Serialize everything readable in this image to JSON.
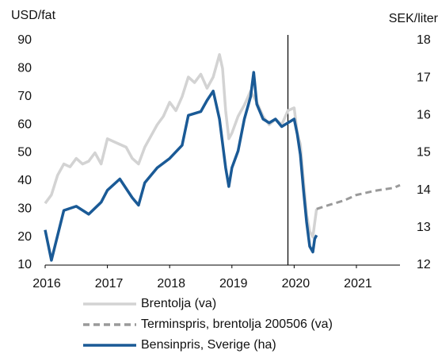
{
  "chart_data": {
    "type": "line",
    "y_label": "USD/fat",
    "y2_label": "SEK/liter",
    "xlim": [
      2016,
      2021.7
    ],
    "xticks": [
      2016,
      2017,
      2018,
      2019,
      2020,
      2021
    ],
    "ylim": [
      10,
      90
    ],
    "yticks": [
      10,
      20,
      30,
      40,
      50,
      60,
      70,
      80,
      90
    ],
    "y2lim": [
      12,
      18
    ],
    "y2ticks": [
      12,
      13,
      14,
      15,
      16,
      17,
      18
    ],
    "vline_x": 2019.9,
    "grid": false,
    "series": [
      {
        "name": "Brentolja (va)",
        "color": "#d3d3d3",
        "dashed": false,
        "axis": "y",
        "x": [
          2016.0,
          2016.1,
          2016.2,
          2016.3,
          2016.4,
          2016.5,
          2016.6,
          2016.7,
          2016.8,
          2016.9,
          2017.0,
          2017.2,
          2017.3,
          2017.4,
          2017.5,
          2017.6,
          2017.7,
          2017.8,
          2017.9,
          2018.0,
          2018.1,
          2018.2,
          2018.3,
          2018.4,
          2018.5,
          2018.6,
          2018.7,
          2018.8,
          2018.85,
          2018.9,
          2018.95,
          2019.0,
          2019.1,
          2019.2,
          2019.3,
          2019.4,
          2019.5,
          2019.6,
          2019.7,
          2019.8,
          2019.9,
          2020.0,
          2020.05,
          2020.1,
          2020.15,
          2020.2,
          2020.25,
          2020.3,
          2020.33,
          2020.36
        ],
        "values": [
          32,
          35,
          42,
          46,
          45,
          48,
          46,
          47,
          50,
          46,
          55,
          53,
          52,
          48,
          46,
          52,
          56,
          60,
          63,
          68,
          65,
          70,
          77,
          75,
          78,
          73,
          77,
          85,
          80,
          65,
          55,
          57,
          63,
          67,
          72,
          68,
          63,
          60,
          62,
          60,
          65,
          66,
          57,
          53,
          40,
          28,
          22,
          20,
          25,
          30
        ]
      },
      {
        "name": "Terminspris, brentolja 200506 (va)",
        "color": "#9a9a9a",
        "dashed": true,
        "axis": "y",
        "x": [
          2020.36,
          2020.5,
          2020.8,
          2021.0,
          2021.3,
          2021.6,
          2021.7
        ],
        "values": [
          30,
          31,
          33,
          35,
          36.5,
          37.5,
          38.5
        ]
      },
      {
        "name": "Bensinpris, Sverige (ha)",
        "color": "#1a5a96",
        "dashed": false,
        "axis": "y2",
        "x": [
          2016.0,
          2016.1,
          2016.3,
          2016.5,
          2016.7,
          2016.9,
          2017.0,
          2017.2,
          2017.4,
          2017.5,
          2017.6,
          2017.8,
          2018.0,
          2018.2,
          2018.3,
          2018.5,
          2018.6,
          2018.7,
          2018.8,
          2018.9,
          2018.95,
          2019.0,
          2019.1,
          2019.2,
          2019.3,
          2019.35,
          2019.4,
          2019.5,
          2019.6,
          2019.7,
          2019.8,
          2019.9,
          2020.0,
          2020.05,
          2020.1,
          2020.15,
          2020.2,
          2020.25,
          2020.3,
          2020.33,
          2020.36
        ],
        "values": [
          12.94,
          12.13,
          13.46,
          13.57,
          13.36,
          13.68,
          14.0,
          14.3,
          13.8,
          13.6,
          14.2,
          14.6,
          14.85,
          15.2,
          16.0,
          16.1,
          16.4,
          16.65,
          15.9,
          14.6,
          14.1,
          14.6,
          15.05,
          15.9,
          16.5,
          17.15,
          16.3,
          15.9,
          15.8,
          15.9,
          15.7,
          15.8,
          15.9,
          15.5,
          14.95,
          14.0,
          13.15,
          12.5,
          12.35,
          12.7,
          12.8
        ]
      }
    ]
  }
}
